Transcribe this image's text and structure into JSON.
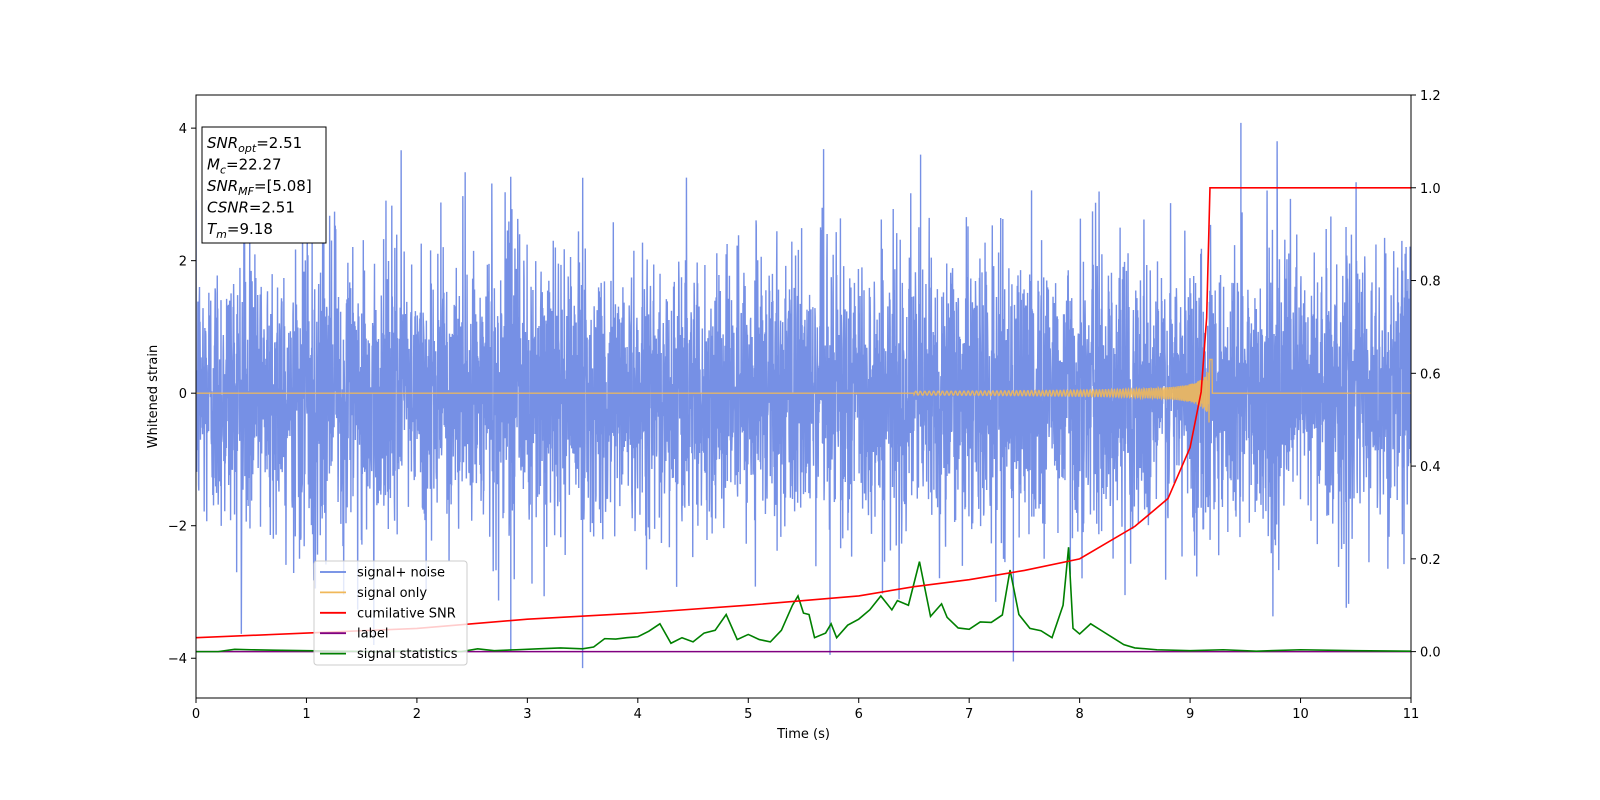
{
  "chart_data": {
    "type": "line",
    "xlabel": "Time (s)",
    "ylabel": "Whitened strain",
    "xlim": [
      0,
      11
    ],
    "ylim": [
      -4.6,
      4.5
    ],
    "y2lim": [
      -0.1,
      1.2
    ],
    "x_ticks": [
      0,
      1,
      2,
      3,
      4,
      5,
      6,
      7,
      8,
      9,
      10,
      11
    ],
    "y_ticks": [
      -4,
      -2,
      0,
      2,
      4
    ],
    "y2_ticks": [
      0.0,
      0.2,
      0.4,
      0.6,
      0.8,
      1.0,
      1.2
    ],
    "y2_tick_labels": [
      "0.0",
      "0.2",
      "0.4",
      "0.6",
      "0.8",
      "1.0",
      "1.2"
    ],
    "grid": false,
    "legend_placement": "lower-left",
    "info_box": {
      "placement": "top-left",
      "lines": [
        {
          "base": "SNR",
          "sub": "opt",
          "rest": "=2.51"
        },
        {
          "base": "M",
          "sub": "c",
          "rest": "=22.27"
        },
        {
          "base": "SNR",
          "sub": "MF",
          "rest": "=[5.08]"
        },
        {
          "base": "CSNR",
          "sub": "",
          "rest": "=2.51"
        },
        {
          "base": "T",
          "sub": "m",
          "rest": "=9.18"
        }
      ]
    },
    "series": [
      {
        "name": "signal+ noise",
        "axis": "left",
        "color": "#6a87e3",
        "description_values": {
          "noise_sigma": 1.05,
          "max_peak": 4.08,
          "min_trough": -4.15
        }
      },
      {
        "name": "signal only",
        "axis": "left",
        "color": "#f0b85a",
        "chirp": {
          "start": 6.5,
          "merger": 9.18,
          "peak_amplitude": 0.55
        }
      },
      {
        "name": "cumilative SNR",
        "axis": "right",
        "color": "#ff0000",
        "x": [
          0,
          1,
          2,
          3,
          4,
          5,
          6,
          6.5,
          7,
          7.5,
          8,
          8.5,
          8.8,
          9.0,
          9.1,
          9.15,
          9.18,
          11
        ],
        "y": [
          0.03,
          0.04,
          0.05,
          0.07,
          0.083,
          0.1,
          0.12,
          0.14,
          0.155,
          0.175,
          0.2,
          0.27,
          0.33,
          0.44,
          0.56,
          0.72,
          1.0,
          1.0
        ]
      },
      {
        "name": "label",
        "axis": "right",
        "color": "#800080",
        "x": [
          0,
          11
        ],
        "y": [
          0.0,
          0.0
        ]
      },
      {
        "name": "signal statistics",
        "axis": "right",
        "color": "#008000",
        "x": [
          0,
          0.2,
          0.35,
          0.5,
          0.7,
          1.0,
          1.3,
          1.6,
          1.9,
          2.2,
          2.4,
          2.55,
          2.7,
          2.9,
          3.1,
          3.3,
          3.5,
          3.6,
          3.7,
          3.8,
          3.9,
          4.0,
          4.1,
          4.2,
          4.3,
          4.4,
          4.5,
          4.6,
          4.7,
          4.8,
          4.9,
          5.0,
          5.1,
          5.2,
          5.3,
          5.4,
          5.45,
          5.5,
          5.55,
          5.6,
          5.7,
          5.75,
          5.8,
          5.9,
          6.0,
          6.1,
          6.2,
          6.3,
          6.35,
          6.45,
          6.55,
          6.65,
          6.75,
          6.8,
          6.9,
          7.0,
          7.1,
          7.2,
          7.3,
          7.37,
          7.45,
          7.55,
          7.65,
          7.75,
          7.85,
          7.9,
          7.94,
          8.0,
          8.1,
          8.2,
          8.3,
          8.4,
          8.5,
          8.7,
          9.0,
          9.3,
          9.6,
          10.0,
          10.5,
          11
        ],
        "y": [
          0.0,
          0.0,
          0.005,
          0.004,
          0.003,
          0.002,
          0.001,
          0.0,
          0.001,
          0.002,
          0.0,
          0.006,
          0.002,
          0.004,
          0.006,
          0.008,
          0.006,
          0.01,
          0.028,
          0.027,
          0.03,
          0.032,
          0.044,
          0.06,
          0.018,
          0.03,
          0.021,
          0.04,
          0.046,
          0.08,
          0.026,
          0.037,
          0.026,
          0.021,
          0.046,
          0.1,
          0.12,
          0.083,
          0.08,
          0.03,
          0.04,
          0.06,
          0.03,
          0.057,
          0.07,
          0.09,
          0.12,
          0.09,
          0.11,
          0.1,
          0.194,
          0.076,
          0.103,
          0.074,
          0.051,
          0.048,
          0.064,
          0.063,
          0.079,
          0.176,
          0.08,
          0.05,
          0.045,
          0.03,
          0.1,
          0.225,
          0.05,
          0.038,
          0.06,
          0.045,
          0.03,
          0.015,
          0.008,
          0.004,
          0.002,
          0.004,
          0.001,
          0.004,
          0.002,
          0.001
        ]
      }
    ]
  }
}
